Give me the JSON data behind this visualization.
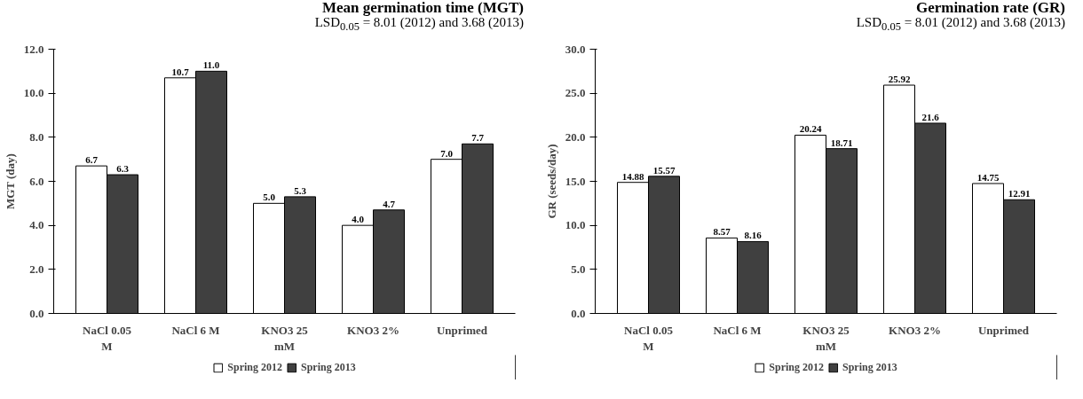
{
  "chart_data": [
    {
      "type": "bar",
      "title": "Mean germination time (MGT)",
      "subtitle": "LSD$_{0.05}$ = 8.01 (2012) and 3.68 (2013)",
      "ylabel": "MGT (day)",
      "categories": [
        "NaCl 0.05 M",
        "NaCl 6 M",
        "KNO3 25 mM",
        "KNO3 2%",
        "Unprimed"
      ],
      "series": [
        {
          "name": "Spring 2012",
          "color": "#ffffff",
          "values": [
            6.7,
            10.7,
            5.0,
            4.0,
            7.0
          ],
          "value_labels": [
            "6.7",
            "10.7",
            "5.0",
            "4.0",
            "7.0"
          ]
        },
        {
          "name": "Spring 2013",
          "color": "#404040",
          "values": [
            6.3,
            11.0,
            5.3,
            4.7,
            7.7
          ],
          "value_labels": [
            "6.3",
            "11.0",
            "5.3",
            "4.7",
            "7.7"
          ]
        }
      ],
      "ylim": [
        0,
        12
      ],
      "yticks": [
        {
          "value": 0,
          "label": "0.0"
        },
        {
          "value": 2,
          "label": "2.0"
        },
        {
          "value": 4,
          "label": "4.0"
        },
        {
          "value": 6,
          "label": "6.0"
        },
        {
          "value": 8,
          "label": "8.0"
        },
        {
          "value": 10,
          "label": "10.0"
        },
        {
          "value": 12,
          "label": "12.0"
        }
      ],
      "legend": "bottom"
    },
    {
      "type": "bar",
      "title": "Germination rate (GR)",
      "subtitle": "LSD$_{0.05}$ = 8.01 (2012) and 3.68 (2013)",
      "ylabel": "GR (seeds/day)",
      "categories": [
        "NaCl 0.05 M",
        "NaCl 6 M",
        "KNO3 25 mM",
        "KNO3 2%",
        "Unprimed"
      ],
      "series": [
        {
          "name": "Spring 2012",
          "color": "#ffffff",
          "values": [
            14.88,
            8.57,
            20.24,
            25.92,
            14.75
          ],
          "value_labels": [
            "14.88",
            "8.57",
            "20.24",
            "25.92",
            "14.75"
          ]
        },
        {
          "name": "Spring 2013",
          "color": "#404040",
          "values": [
            15.57,
            8.16,
            18.71,
            21.6,
            12.91
          ],
          "value_labels": [
            "15.57",
            "8.16",
            "18.71",
            "21.6",
            "12.91"
          ]
        }
      ],
      "ylim": [
        0,
        30
      ],
      "yticks": [
        {
          "value": 0,
          "label": "0.0"
        },
        {
          "value": 5,
          "label": "5.0"
        },
        {
          "value": 10,
          "label": "10.0"
        },
        {
          "value": 15,
          "label": "15.0"
        },
        {
          "value": 20,
          "label": "20.0"
        },
        {
          "value": 25,
          "label": "25.0"
        },
        {
          "value": 30,
          "label": "30.0"
        }
      ],
      "legend": "bottom"
    }
  ]
}
